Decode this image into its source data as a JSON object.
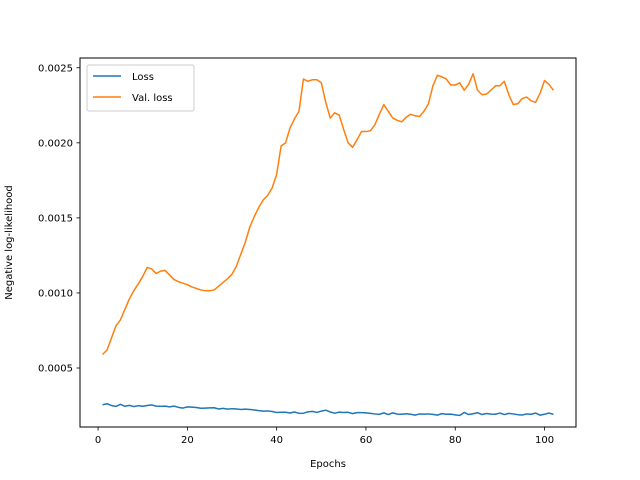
{
  "chart_data": {
    "type": "line",
    "title": "",
    "xlabel": "Epochs",
    "ylabel": "Negative log-likelihood",
    "xlim": [
      -4.05,
      107.05
    ],
    "ylim": [
      0.000107,
      0.002565
    ],
    "xticks": [
      0,
      20,
      40,
      60,
      80,
      100
    ],
    "xtick_labels": [
      "0",
      "20",
      "40",
      "60",
      "80",
      "100"
    ],
    "yticks": [
      0.0005,
      0.001,
      0.0015,
      0.002,
      0.0025
    ],
    "ytick_labels": [
      "0.0005",
      "0.0010",
      "0.0015",
      "0.0020",
      "0.0025"
    ],
    "grid": false,
    "legend_position": "upper-left",
    "x": [
      1,
      2,
      3,
      4,
      5,
      6,
      7,
      8,
      9,
      10,
      11,
      12,
      13,
      14,
      15,
      16,
      17,
      18,
      19,
      20,
      21,
      22,
      23,
      24,
      25,
      26,
      27,
      28,
      29,
      30,
      31,
      32,
      33,
      34,
      35,
      36,
      37,
      38,
      39,
      40,
      41,
      42,
      43,
      44,
      45,
      46,
      47,
      48,
      49,
      50,
      51,
      52,
      53,
      54,
      55,
      56,
      57,
      58,
      59,
      60,
      61,
      62,
      63,
      64,
      65,
      66,
      67,
      68,
      69,
      70,
      71,
      72,
      73,
      74,
      75,
      76,
      77,
      78,
      79,
      80,
      81,
      82,
      83,
      84,
      85,
      86,
      87,
      88,
      89,
      90,
      91,
      92,
      93,
      94,
      95,
      96,
      97,
      98,
      99,
      100,
      101,
      102
    ],
    "series": [
      {
        "name": "Loss",
        "color": "#1f77b4",
        "values": [
          0.000255,
          0.000262,
          0.00025,
          0.000244,
          0.000258,
          0.000245,
          0.000251,
          0.000243,
          0.000249,
          0.000245,
          0.00025,
          0.000254,
          0.000246,
          0.000244,
          0.000246,
          0.000241,
          0.000246,
          0.000238,
          0.000233,
          0.000241,
          0.000239,
          0.000237,
          0.000232,
          0.000233,
          0.000234,
          0.000235,
          0.000227,
          0.000231,
          0.000226,
          0.000229,
          0.000227,
          0.000224,
          0.000226,
          0.000224,
          0.00022,
          0.000216,
          0.000213,
          0.000214,
          0.00021,
          0.000204,
          0.000205,
          0.000205,
          0.0002,
          0.000207,
          0.000198,
          0.000199,
          0.000208,
          0.000211,
          0.000204,
          0.000213,
          0.000219,
          0.000207,
          0.000199,
          0.000206,
          0.000204,
          0.000205,
          0.000196,
          0.000203,
          0.000203,
          0.000201,
          0.000198,
          0.000194,
          0.000191,
          0.000201,
          0.00019,
          0.000201,
          0.000193,
          0.000192,
          0.000195,
          0.000192,
          0.000186,
          0.000194,
          0.000193,
          0.000194,
          0.000191,
          0.000186,
          0.000196,
          0.000192,
          0.000193,
          0.000188,
          0.000184,
          0.000204,
          0.00019,
          0.000195,
          0.000202,
          0.00019,
          0.000197,
          0.000193,
          0.000192,
          0.0002,
          0.00019,
          0.000198,
          0.000194,
          0.000189,
          0.000187,
          0.000194,
          0.000192,
          0.0002,
          0.000186,
          0.000192,
          0.0002,
          0.000191
        ]
      },
      {
        "name": "Val. loss",
        "color": "#ff7f0e",
        "values": [
          0.00059,
          0.00062,
          0.0007,
          0.00078,
          0.00082,
          0.00089,
          0.00096,
          0.001015,
          0.00106,
          0.00111,
          0.00117,
          0.00116,
          0.00113,
          0.001145,
          0.00115,
          0.00112,
          0.00109,
          0.001075,
          0.001065,
          0.001055,
          0.00104,
          0.00103,
          0.00102,
          0.001015,
          0.001015,
          0.00102,
          0.001045,
          0.00107,
          0.001095,
          0.001125,
          0.00118,
          0.00126,
          0.00134,
          0.00144,
          0.00151,
          0.00157,
          0.00162,
          0.00165,
          0.0017,
          0.00179,
          0.00198,
          0.002,
          0.0021,
          0.00216,
          0.00221,
          0.002425,
          0.00241,
          0.00242,
          0.00242,
          0.0024,
          0.00227,
          0.002165,
          0.0022,
          0.002185,
          0.00209,
          0.002,
          0.00197,
          0.00202,
          0.002075,
          0.002075,
          0.00208,
          0.00212,
          0.00219,
          0.002255,
          0.00221,
          0.002165,
          0.00215,
          0.00214,
          0.00217,
          0.00219,
          0.00218,
          0.002175,
          0.00221,
          0.00226,
          0.00238,
          0.00245,
          0.00244,
          0.002425,
          0.002385,
          0.002385,
          0.0024,
          0.00235,
          0.00239,
          0.00246,
          0.00235,
          0.00232,
          0.002325,
          0.00235,
          0.00238,
          0.00238,
          0.00241,
          0.00232,
          0.002255,
          0.00226,
          0.002295,
          0.002305,
          0.00228,
          0.00227,
          0.00233,
          0.002415,
          0.00239,
          0.00235
        ]
      }
    ]
  }
}
